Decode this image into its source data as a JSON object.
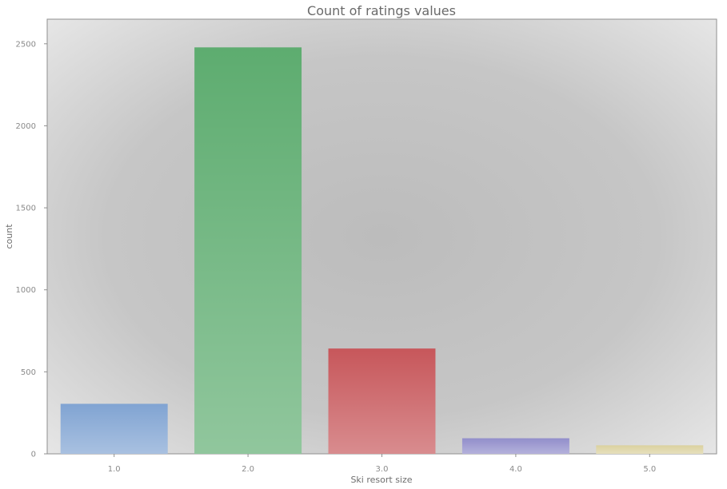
{
  "chart_data": {
    "type": "bar",
    "title": "Count of ratings values",
    "xlabel": "Ski resort size",
    "ylabel": "count",
    "categories": [
      "1.0",
      "2.0",
      "3.0",
      "4.0",
      "5.0"
    ],
    "values": [
      305,
      2478,
      642,
      95,
      52
    ],
    "ylim": [
      0,
      2650
    ],
    "yticks": [
      0,
      500,
      1000,
      1500,
      2000,
      2500
    ],
    "ytick_labels": [
      "0",
      "500",
      "1000",
      "1500",
      "2000",
      "2500"
    ],
    "grid": false,
    "legend": "none",
    "colors": [
      "#7a9fd0",
      "#55a868",
      "#c44e52",
      "#8c88c8",
      "#d9cf9a"
    ],
    "background": "radial-gradient grey"
  }
}
